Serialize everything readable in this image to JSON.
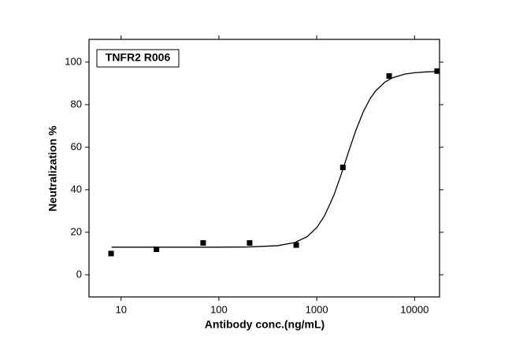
{
  "chart_data": {
    "type": "scatter",
    "annotation": "TNFR2 R006",
    "x_label": "Antibody conc.(ng/mL)",
    "y_label": "Neutralization %",
    "xscale": "log",
    "xlim": [
      4.7,
      18000
    ],
    "xticks": [
      10,
      100,
      1000,
      10000
    ],
    "ylim": [
      -10.4,
      110.7
    ],
    "yticks": [
      0,
      20,
      40,
      60,
      80,
      100
    ],
    "series": [
      {
        "mode": "markers",
        "color": "#000000",
        "x": [
          7.9,
          23,
          69,
          206,
          617,
          1850,
          5500,
          17000
        ],
        "values": [
          10,
          12,
          15,
          15,
          14,
          50.5,
          93.5,
          95.8
        ]
      },
      {
        "mode": "line",
        "color": "#000000",
        "x": [
          8,
          20,
          50,
          100,
          200,
          400,
          600,
          800,
          1000,
          1200,
          1500,
          1800,
          2100,
          2500,
          3000,
          3500,
          4000,
          5000,
          6000,
          8000,
          10000,
          13000,
          17000
        ],
        "values": [
          13,
          13,
          13,
          13,
          13.1,
          13.7,
          15.2,
          18,
          22.2,
          27.7,
          37.5,
          47.9,
          57.4,
          67.7,
          76.8,
          82.7,
          86.5,
          90.7,
          92.7,
          94.4,
          95,
          95.4,
          95.6
        ]
      }
    ]
  }
}
